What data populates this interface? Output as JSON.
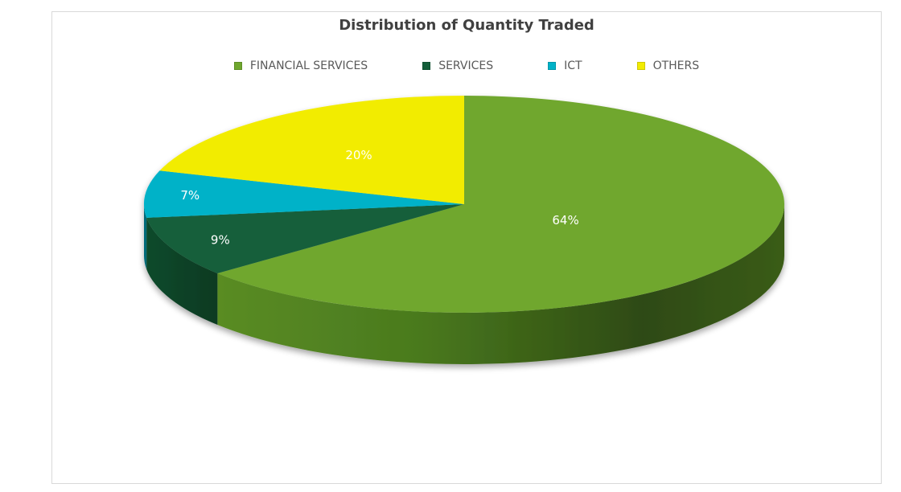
{
  "chart_data": {
    "type": "pie",
    "title": "Distribution of Quantity Traded",
    "legend_position": "top",
    "categories": [
      "FINANCIAL SERVICES",
      "SERVICES",
      "ICT",
      "OTHERS"
    ],
    "values": [
      64,
      9,
      7,
      20
    ],
    "labels": [
      "64%",
      "9%",
      "7%",
      "20%"
    ],
    "colors": [
      "#6fa72e",
      "#135e3a",
      "#00b2c8",
      "#f2ec00"
    ],
    "style": "3d"
  },
  "legend": {
    "items": [
      {
        "label": "FINANCIAL SERVICES",
        "color": "#6fa72e"
      },
      {
        "label": "SERVICES",
        "color": "#135e3a"
      },
      {
        "label": "ICT",
        "color": "#00b2c8"
      },
      {
        "label": "OTHERS",
        "color": "#f2ec00"
      }
    ]
  }
}
